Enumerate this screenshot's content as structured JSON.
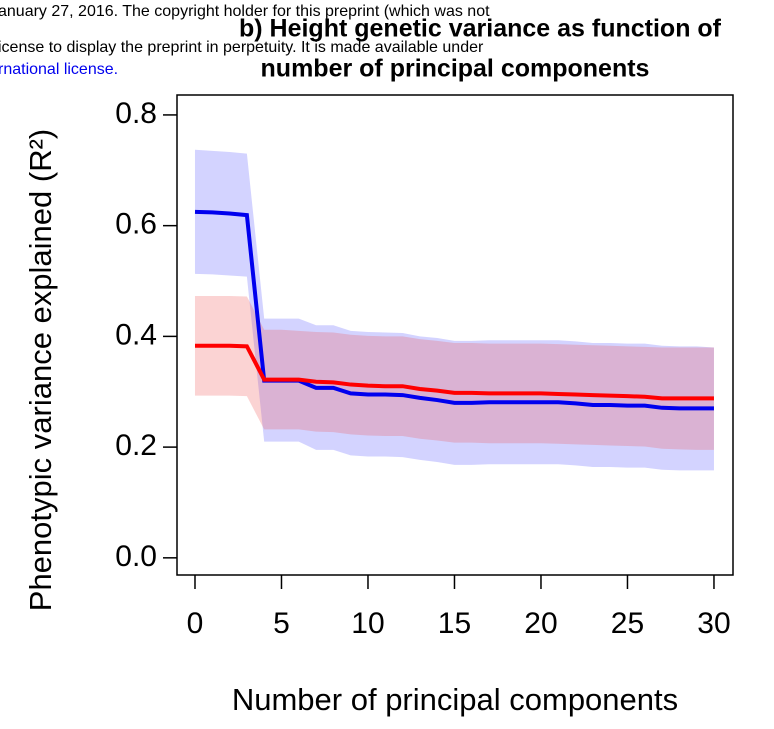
{
  "preprint_notice": [
    "anuary 27, 2016. The copyright holder for this preprint (which was not",
    "icense to display the preprint in perpetuity. It is made available under",
    "rnational license."
  ],
  "chart_data": {
    "type": "line",
    "title": [
      "b) Height genetic variance as function of",
      "number of principal components"
    ],
    "x_label": "Number of principal components",
    "y_label": "Phenotypic variance explained (R²)",
    "x": [
      0,
      1,
      2,
      3,
      4,
      5,
      6,
      7,
      8,
      9,
      10,
      11,
      12,
      13,
      14,
      15,
      16,
      17,
      18,
      19,
      20,
      21,
      22,
      23,
      24,
      25,
      26,
      27,
      28,
      29,
      30
    ],
    "xlim": [
      -1.04,
      31.1
    ],
    "xticks": [
      0,
      5,
      10,
      15,
      20,
      25,
      30
    ],
    "ylim": [
      -0.031,
      0.836
    ],
    "yticks": [
      {
        "value": 0,
        "label": "0.0"
      },
      0.2,
      0.4,
      0.6,
      0.8
    ],
    "series": [
      {
        "color": "#0000ee",
        "band_color": "rgba(80,80,255,0.25)",
        "values": [
          0.625,
          0.624,
          0.622,
          0.619,
          0.32,
          0.32,
          0.32,
          0.307,
          0.307,
          0.297,
          0.295,
          0.295,
          0.294,
          0.289,
          0.285,
          0.28,
          0.28,
          0.281,
          0.281,
          0.281,
          0.281,
          0.281,
          0.279,
          0.276,
          0.276,
          0.275,
          0.275,
          0.271,
          0.27,
          0.27,
          0.27
        ],
        "upper": [
          0.737,
          0.735,
          0.733,
          0.73,
          0.432,
          0.432,
          0.432,
          0.42,
          0.42,
          0.41,
          0.408,
          0.407,
          0.406,
          0.4,
          0.397,
          0.392,
          0.392,
          0.393,
          0.393,
          0.393,
          0.393,
          0.393,
          0.391,
          0.388,
          0.388,
          0.387,
          0.387,
          0.383,
          0.382,
          0.382,
          0.38
        ],
        "lower": [
          0.513,
          0.512,
          0.51,
          0.508,
          0.21,
          0.21,
          0.21,
          0.195,
          0.195,
          0.185,
          0.183,
          0.183,
          0.182,
          0.177,
          0.173,
          0.168,
          0.168,
          0.169,
          0.169,
          0.169,
          0.169,
          0.169,
          0.167,
          0.164,
          0.164,
          0.163,
          0.163,
          0.159,
          0.158,
          0.158,
          0.158
        ]
      },
      {
        "color": "#ff0000",
        "band_color": "rgba(240,80,80,0.25)",
        "values": [
          0.383,
          0.383,
          0.383,
          0.382,
          0.322,
          0.322,
          0.322,
          0.318,
          0.317,
          0.313,
          0.311,
          0.31,
          0.31,
          0.305,
          0.302,
          0.298,
          0.298,
          0.297,
          0.297,
          0.297,
          0.297,
          0.296,
          0.295,
          0.294,
          0.293,
          0.292,
          0.291,
          0.288,
          0.288,
          0.288,
          0.288
        ],
        "upper": [
          0.473,
          0.473,
          0.473,
          0.472,
          0.412,
          0.412,
          0.41,
          0.408,
          0.407,
          0.403,
          0.401,
          0.4,
          0.4,
          0.395,
          0.392,
          0.388,
          0.388,
          0.387,
          0.387,
          0.387,
          0.387,
          0.386,
          0.385,
          0.384,
          0.383,
          0.382,
          0.381,
          0.38,
          0.38,
          0.38,
          0.38
        ],
        "lower": [
          0.293,
          0.293,
          0.293,
          0.292,
          0.232,
          0.232,
          0.232,
          0.228,
          0.227,
          0.223,
          0.221,
          0.22,
          0.22,
          0.215,
          0.212,
          0.208,
          0.208,
          0.207,
          0.207,
          0.207,
          0.207,
          0.206,
          0.205,
          0.204,
          0.203,
          0.202,
          0.201,
          0.197,
          0.196,
          0.195,
          0.195
        ]
      }
    ]
  }
}
